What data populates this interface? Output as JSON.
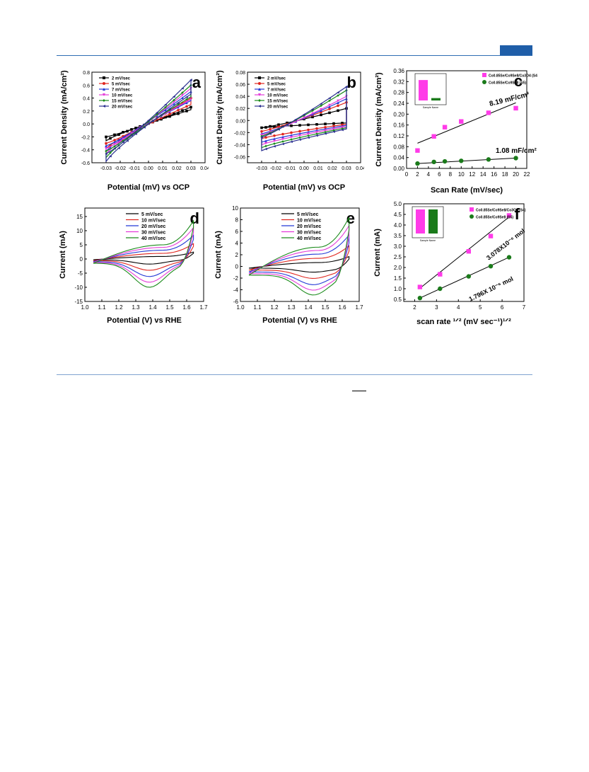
{
  "chart_data": [
    {
      "panel": "a",
      "type": "line",
      "xlabel": "Potential (mV) vs OCP",
      "ylabel": "Current Density (mA/cm²)",
      "xlim": [
        -0.04,
        0.04
      ],
      "ylim": [
        -0.6,
        0.8
      ],
      "xticks": [
        "-0.03",
        "-0.02",
        "-0.01",
        "0.00",
        "0.01",
        "0.02",
        "0.03",
        "0.04"
      ],
      "yticks": [
        "-0.6",
        "-0.4",
        "-0.2",
        "0.0",
        "0.2",
        "0.4",
        "0.6",
        "0.8"
      ],
      "legend_position": "top-left",
      "series": [
        {
          "name": "2 mV/sec",
          "color": "#000000",
          "marker": "square",
          "loop": {
            "x0": -0.03,
            "x1": 0.03,
            "yLow0": -0.26,
            "yLow1": 0.22,
            "yUp0": -0.2,
            "yUp1": 0.26
          }
        },
        {
          "name": "5 mV/sec",
          "color": "#e0261f",
          "marker": "circle",
          "loop": {
            "x0": -0.03,
            "x1": 0.03,
            "yLow0": -0.38,
            "yLow1": 0.3,
            "yUp0": -0.3,
            "yUp1": 0.4
          }
        },
        {
          "name": "7 mV/sec",
          "color": "#2339d6",
          "marker": "triangle",
          "loop": {
            "x0": -0.03,
            "x1": 0.03,
            "yLow0": -0.42,
            "yLow1": 0.36,
            "yUp0": -0.34,
            "yUp1": 0.5
          }
        },
        {
          "name": "10 mV/sec",
          "color": "#e43ad8",
          "marker": "triangle-down",
          "loop": {
            "x0": -0.03,
            "x1": 0.03,
            "yLow0": -0.46,
            "yLow1": 0.38,
            "yUp0": -0.38,
            "yUp1": 0.55
          }
        },
        {
          "name": "15 mV/sec",
          "color": "#1a8a1a",
          "marker": "diamond",
          "loop": {
            "x0": -0.03,
            "x1": 0.03,
            "yLow0": -0.52,
            "yLow1": 0.42,
            "yUp0": -0.42,
            "yUp1": 0.6
          }
        },
        {
          "name": "20 mV/sec",
          "color": "#2a2f8f",
          "marker": "triangle-left",
          "loop": {
            "x0": -0.03,
            "x1": 0.03,
            "yLow0": -0.58,
            "yLow1": 0.46,
            "yUp0": -0.46,
            "yUp1": 0.68
          }
        }
      ]
    },
    {
      "panel": "b",
      "type": "line",
      "xlabel": "Potential (mV) vs OCP",
      "ylabel": "Current Density (mA/cm²)",
      "xlim": [
        -0.04,
        0.04
      ],
      "ylim": [
        -0.07,
        0.08
      ],
      "xticks": [
        "-0.03",
        "-0.02",
        "-0.01",
        "0.00",
        "0.01",
        "0.02",
        "0.03",
        "0.04"
      ],
      "yticks": [
        "-0.06",
        "-0.04",
        "-0.02",
        "0.00",
        "0.02",
        "0.04",
        "0.06",
        "0.08"
      ],
      "legend_position": "top-left",
      "series": [
        {
          "name": "2 mV/sec",
          "color": "#000000",
          "marker": "square",
          "loop": {
            "x0": -0.03,
            "x1": 0.03,
            "yLow0": -0.012,
            "yLow1": -0.004,
            "yUp0": -0.012,
            "yUp1": 0.02
          }
        },
        {
          "name": "5 mV/sec",
          "color": "#e0261f",
          "marker": "circle",
          "loop": {
            "x0": -0.03,
            "x1": 0.03,
            "yLow0": -0.03,
            "yLow1": -0.006,
            "yUp0": -0.018,
            "yUp1": 0.03
          }
        },
        {
          "name": "7 mV/sec",
          "color": "#2339d6",
          "marker": "triangle",
          "loop": {
            "x0": -0.03,
            "x1": 0.03,
            "yLow0": -0.036,
            "yLow1": -0.008,
            "yUp0": -0.022,
            "yUp1": 0.036
          }
        },
        {
          "name": "10 mV/sec",
          "color": "#e43ad8",
          "marker": "triangle-down",
          "loop": {
            "x0": -0.03,
            "x1": 0.03,
            "yLow0": -0.04,
            "yLow1": -0.01,
            "yUp0": -0.024,
            "yUp1": 0.04
          }
        },
        {
          "name": "15 mV/sec",
          "color": "#1a8a1a",
          "marker": "diamond",
          "loop": {
            "x0": -0.03,
            "x1": 0.03,
            "yLow0": -0.045,
            "yLow1": -0.012,
            "yUp0": -0.026,
            "yUp1": 0.05
          }
        },
        {
          "name": "20 mV/sec",
          "color": "#2a2f8f",
          "marker": "triangle-left",
          "loop": {
            "x0": -0.03,
            "x1": 0.03,
            "yLow0": -0.05,
            "yLow1": -0.014,
            "yUp0": -0.028,
            "yUp1": 0.056
          }
        }
      ]
    },
    {
      "panel": "c",
      "type": "scatter",
      "xlabel": "Scan Rate (mV/sec)",
      "ylabel": "Current Density (mA/cm²)",
      "xlim": [
        0,
        22
      ],
      "ylim": [
        0,
        0.36
      ],
      "xticks": [
        "0",
        "2",
        "4",
        "6",
        "8",
        "10",
        "12",
        "14",
        "16",
        "18",
        "20",
        "22"
      ],
      "yticks": [
        "0.00",
        "0.04",
        "0.08",
        "0.12",
        "0.16",
        "0.20",
        "0.24",
        "0.28",
        "0.32",
        "0.36"
      ],
      "legend_position": "top-right",
      "series": [
        {
          "name": "Co0.85Se/Co9Se8/Co3O4 (S4)",
          "color": "#ff3be8",
          "marker": "square",
          "x": [
            2,
            5,
            7,
            10,
            15,
            20
          ],
          "y": [
            0.066,
            0.118,
            0.152,
            0.173,
            0.205,
            0.222
          ],
          "fit": [
            [
              2,
              0.093
            ],
            [
              20,
              0.242
            ]
          ]
        },
        {
          "name": "Co0.85Se/Co9Se8 (S5)",
          "color": "#1a7a1a",
          "marker": "circle",
          "x": [
            2,
            5,
            7,
            10,
            15,
            20
          ],
          "y": [
            0.018,
            0.024,
            0.026,
            0.028,
            0.033,
            0.038
          ],
          "fit": [
            [
              2,
              0.018
            ],
            [
              20,
              0.038
            ]
          ]
        }
      ],
      "annotations": [
        "8.19 mF/cm²",
        "1.08 mF/cm²"
      ],
      "inset": {
        "type": "bar",
        "xlabel": "Sample Name",
        "categories": [
          "S4",
          "S5"
        ],
        "values": [
          0.34,
          0.04
        ],
        "colors": [
          "#ff3be8",
          "#1a7a1a"
        ]
      }
    },
    {
      "panel": "d",
      "type": "line",
      "xlabel": "Potential (V) vs RHE",
      "ylabel": "Current (mA)",
      "xlim": [
        1.0,
        1.7
      ],
      "ylim": [
        -15,
        18
      ],
      "xticks": [
        "1.0",
        "1.1",
        "1.2",
        "1.3",
        "1.4",
        "1.5",
        "1.6",
        "1.7"
      ],
      "yticks": [
        "-15",
        "-10",
        "-5",
        "0",
        "5",
        "10",
        "15"
      ],
      "legend_position": "top-center",
      "series": [
        {
          "name": "5 mV/sec",
          "color": "#000000",
          "scale": 0.18
        },
        {
          "name": "10 mV/sec",
          "color": "#e0261f",
          "scale": 0.4
        },
        {
          "name": "20 mV/sec",
          "color": "#2339d6",
          "scale": 0.62
        },
        {
          "name": "30 mV/sec",
          "color": "#e43ad8",
          "scale": 0.82
        },
        {
          "name": "40 mV/sec",
          "color": "#1a8a1a",
          "scale": 1.0
        }
      ]
    },
    {
      "panel": "e",
      "type": "line",
      "xlabel": "Potential (V) vs RHE",
      "ylabel": "Current (mA)",
      "xlim": [
        1.0,
        1.7
      ],
      "ylim": [
        -6,
        10
      ],
      "xticks": [
        "1.0",
        "1.1",
        "1.2",
        "1.3",
        "1.4",
        "1.5",
        "1.6",
        "1.7"
      ],
      "yticks": [
        "-6",
        "-4",
        "-2",
        "0",
        "2",
        "4",
        "6",
        "8",
        "10"
      ],
      "legend_position": "top-center",
      "series": [
        {
          "name": "5 mV/sec",
          "color": "#000000",
          "scale": 0.2
        },
        {
          "name": "10 mV/sec",
          "color": "#e0261f",
          "scale": 0.42
        },
        {
          "name": "20 mV/sec",
          "color": "#2339d6",
          "scale": 0.64
        },
        {
          "name": "30 mV/sec",
          "color": "#e43ad8",
          "scale": 0.83
        },
        {
          "name": "40 mV/sec",
          "color": "#1a8a1a",
          "scale": 1.0
        }
      ]
    },
    {
      "panel": "f",
      "type": "scatter",
      "xlabel": "scan rate ¹ᐟ² (mV sec⁻¹)¹ᐟ²",
      "ylabel": "Current (mA)",
      "xlim": [
        1.5,
        7
      ],
      "ylim": [
        0.4,
        5.0
      ],
      "xticks": [
        "2",
        "3",
        "4",
        "5",
        "6",
        "7"
      ],
      "yticks": [
        "0.5",
        "1.0",
        "1.5",
        "2.0",
        "2.5",
        "3.0",
        "3.5",
        "4.0",
        "4.5",
        "5.0"
      ],
      "legend_position": "top-right",
      "series": [
        {
          "name": "Co0.85Se/Co9Se8/Co3O4 (S4)",
          "color": "#ff3be8",
          "marker": "square",
          "x": [
            2.24,
            3.16,
            4.47,
            5.48,
            6.32
          ],
          "y": [
            1.08,
            1.68,
            2.76,
            3.48,
            4.45
          ],
          "fit": [
            [
              2.24,
              1.02
            ],
            [
              6.32,
              4.38
            ]
          ]
        },
        {
          "name": "Co0.85Se/Co9Se8 (S5)",
          "color": "#1a7a1a",
          "marker": "circle",
          "x": [
            2.24,
            3.16,
            4.47,
            5.48,
            6.32
          ],
          "y": [
            0.56,
            1.0,
            1.58,
            2.06,
            2.48
          ],
          "fit": [
            [
              2.24,
              0.56
            ],
            [
              6.32,
              2.48
            ]
          ]
        }
      ],
      "annotations": [
        "3.078X10⁻⁶ mol",
        "1.796X 10⁻⁶ mol"
      ],
      "inset": {
        "type": "bar",
        "xlabel": "Sample Name",
        "categories": [
          "S4",
          "S5"
        ],
        "values": [
          0.92,
          0.52
        ],
        "colors": [
          "#ff3be8",
          "#1a7a1a"
        ]
      }
    }
  ]
}
